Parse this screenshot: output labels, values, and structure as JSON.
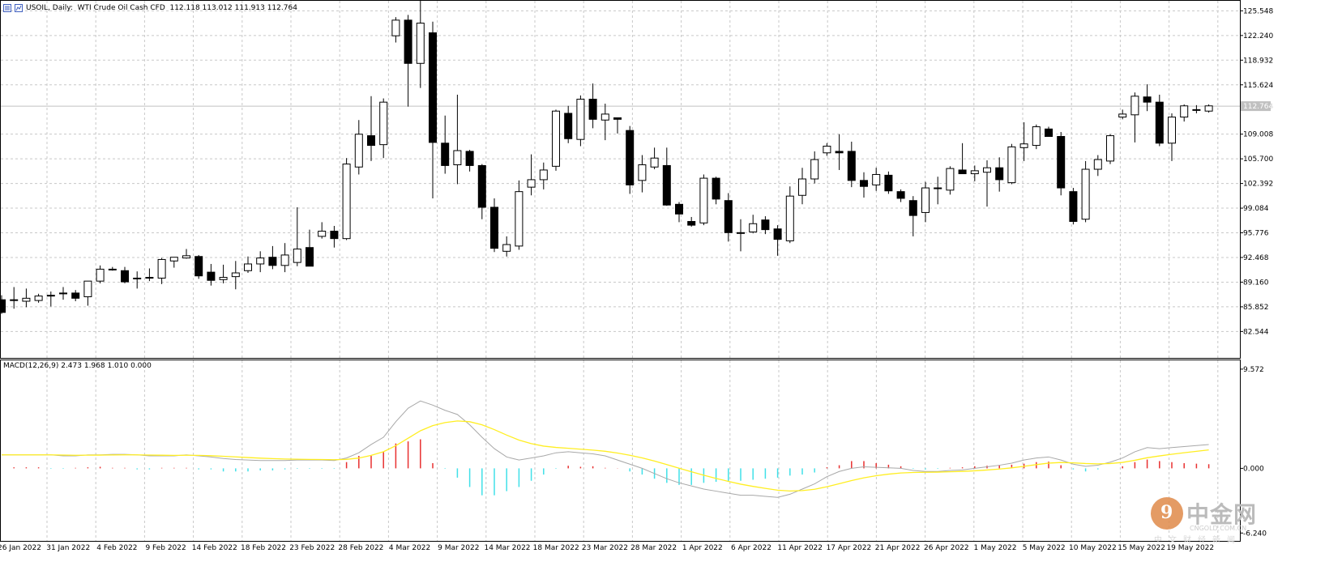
{
  "header": {
    "symbol_info": "USOIL, Daily:  WTI Crude Oil Cash CFD  112.118 113.012 111.913 112.764"
  },
  "macd_header": "MACD(12,26,9) 2.473 1.968 1.010 0.000",
  "watermark": {
    "brand": "中金网",
    "logo_char": "9",
    "domain": "CNGOLD.COM.CN",
    "tagline": "中文财经新闻"
  },
  "colors": {
    "grid": "#c8c8c8",
    "candle": "#000000",
    "hist_pos": "#e83030",
    "hist_neg": "#40e0e8",
    "macd_line": "#a8a8a8",
    "signal_line": "#ffee22",
    "current_price_bg": "#c0c0c0"
  },
  "chart_data": [
    {
      "type": "candlestick",
      "title": "USOIL, Daily: WTI Crude Oil Cash CFD",
      "ylim": [
        79.0,
        127.0
      ],
      "y_ticks": [
        "125.548",
        "122.240",
        "118.932",
        "115.624",
        "112.764",
        "109.008",
        "105.700",
        "102.392",
        "99.084",
        "95.776",
        "92.468",
        "89.160",
        "85.852",
        "82.544"
      ],
      "current_price": "112.764",
      "x_labels": [
        "26 Jan 2022",
        "31 Jan 2022",
        "4 Feb 2022",
        "9 Feb 2022",
        "14 Feb 2022",
        "18 Feb 2022",
        "23 Feb 2022",
        "28 Feb 2022",
        "4 Mar 2022",
        "9 Mar 2022",
        "14 Mar 2022",
        "18 Mar 2022",
        "23 Mar 2022",
        "28 Mar 2022",
        "1 Apr 2022",
        "6 Apr 2022",
        "11 Apr 2022",
        "17 Apr 2022",
        "21 Apr 2022",
        "26 Apr 2022",
        "1 May 2022",
        "5 May 2022",
        "10 May 2022",
        "15 May 2022",
        "19 May 2022"
      ],
      "ohlc": [
        [
          86.8,
          87.4,
          84.9,
          85.1
        ],
        [
          86.7,
          88.5,
          85.6,
          86.8
        ],
        [
          86.6,
          88.3,
          85.8,
          87.0
        ],
        [
          86.7,
          87.6,
          86.4,
          87.3
        ],
        [
          87.4,
          87.9,
          85.9,
          87.4
        ],
        [
          87.6,
          88.5,
          86.8,
          87.7
        ],
        [
          87.7,
          88.1,
          86.6,
          87.0
        ],
        [
          87.2,
          89.3,
          86.0,
          89.3
        ],
        [
          89.3,
          91.4,
          89.0,
          90.9
        ],
        [
          90.9,
          91.2,
          90.7,
          90.9
        ],
        [
          90.7,
          91.2,
          89.0,
          89.2
        ],
        [
          89.7,
          90.6,
          88.3,
          89.7
        ],
        [
          89.7,
          91.0,
          89.3,
          89.8
        ],
        [
          89.7,
          92.4,
          88.9,
          92.2
        ],
        [
          92.0,
          92.5,
          91.1,
          92.5
        ],
        [
          92.4,
          93.6,
          92.3,
          92.7
        ],
        [
          92.6,
          92.8,
          89.6,
          90.0
        ],
        [
          90.5,
          91.6,
          88.7,
          89.4
        ],
        [
          89.5,
          91.5,
          89.0,
          89.8
        ],
        [
          89.9,
          92.0,
          88.2,
          90.4
        ],
        [
          90.7,
          92.6,
          90.4,
          91.6
        ],
        [
          91.6,
          93.3,
          90.5,
          92.4
        ],
        [
          92.5,
          94.0,
          90.9,
          91.4
        ],
        [
          91.4,
          94.4,
          90.5,
          92.8
        ],
        [
          91.8,
          99.2,
          91.3,
          93.6
        ],
        [
          93.8,
          96.2,
          91.6,
          91.3
        ],
        [
          95.3,
          97.2,
          95.0,
          96.0
        ],
        [
          96.0,
          96.7,
          93.8,
          95.0
        ],
        [
          95.0,
          105.8,
          94.8,
          105.0
        ],
        [
          104.6,
          110.9,
          103.6,
          109.0
        ],
        [
          108.8,
          114.1,
          105.4,
          107.5
        ],
        [
          107.6,
          113.8,
          105.8,
          113.3
        ],
        [
          122.2,
          124.7,
          121.3,
          124.3
        ],
        [
          124.3,
          125.0,
          112.7,
          118.5
        ],
        [
          118.5,
          126.9,
          115.2,
          123.9
        ],
        [
          122.6,
          124.1,
          100.4,
          107.9
        ],
        [
          107.8,
          111.5,
          103.7,
          104.8
        ],
        [
          104.9,
          114.3,
          102.3,
          106.8
        ],
        [
          106.7,
          106.9,
          104.0,
          104.8
        ],
        [
          104.8,
          105.0,
          97.6,
          99.2
        ],
        [
          99.2,
          100.4,
          93.2,
          93.7
        ],
        [
          93.3,
          95.3,
          92.6,
          94.2
        ],
        [
          94.0,
          102.8,
          93.5,
          101.3
        ],
        [
          101.9,
          106.3,
          100.8,
          102.9
        ],
        [
          102.9,
          105.2,
          101.6,
          104.2
        ],
        [
          104.7,
          112.3,
          104.1,
          112.1
        ],
        [
          111.8,
          112.8,
          107.8,
          108.4
        ],
        [
          108.3,
          114.2,
          107.4,
          113.7
        ],
        [
          113.7,
          115.8,
          109.8,
          111.0
        ],
        [
          110.9,
          113.1,
          108.2,
          111.7
        ],
        [
          111.2,
          111.2,
          109.1,
          111.0
        ],
        [
          109.5,
          110.1,
          101.0,
          102.2
        ],
        [
          102.8,
          106.2,
          101.2,
          104.9
        ],
        [
          104.6,
          107.2,
          104.3,
          105.8
        ],
        [
          104.8,
          107.2,
          99.4,
          99.5
        ],
        [
          99.6,
          99.9,
          97.2,
          98.3
        ],
        [
          97.3,
          97.9,
          96.6,
          96.8
        ],
        [
          97.1,
          103.6,
          96.8,
          103.1
        ],
        [
          103.1,
          103.3,
          99.6,
          100.3
        ],
        [
          100.1,
          101.1,
          94.6,
          95.8
        ],
        [
          95.8,
          97.6,
          93.3,
          95.8
        ],
        [
          95.9,
          98.2,
          95.7,
          97.0
        ],
        [
          97.5,
          98.0,
          95.6,
          96.2
        ],
        [
          96.3,
          96.8,
          92.7,
          94.9
        ],
        [
          94.7,
          102.0,
          94.4,
          100.7
        ],
        [
          100.8,
          104.5,
          99.6,
          103.0
        ],
        [
          103.0,
          106.7,
          102.4,
          105.6
        ],
        [
          106.5,
          107.8,
          106.1,
          107.4
        ],
        [
          106.7,
          109.0,
          104.2,
          106.5
        ],
        [
          106.7,
          108.0,
          101.9,
          102.8
        ],
        [
          102.8,
          103.9,
          100.5,
          102.0
        ],
        [
          102.2,
          104.5,
          101.4,
          103.6
        ],
        [
          103.5,
          104.0,
          101.0,
          101.4
        ],
        [
          101.3,
          101.6,
          99.9,
          100.4
        ],
        [
          100.1,
          100.7,
          95.3,
          98.1
        ],
        [
          98.5,
          102.6,
          97.2,
          101.8
        ],
        [
          101.8,
          103.3,
          99.6,
          101.7
        ],
        [
          101.5,
          104.7,
          100.9,
          104.4
        ],
        [
          104.2,
          107.8,
          103.8,
          103.7
        ],
        [
          103.7,
          104.8,
          102.7,
          104.1
        ],
        [
          103.9,
          105.5,
          99.3,
          104.5
        ],
        [
          104.5,
          105.9,
          101.3,
          102.9
        ],
        [
          102.5,
          107.7,
          102.3,
          107.3
        ],
        [
          107.2,
          110.6,
          105.4,
          107.7
        ],
        [
          107.5,
          110.3,
          107.0,
          110.0
        ],
        [
          109.7,
          110.0,
          108.7,
          108.7
        ],
        [
          108.7,
          109.3,
          100.8,
          101.8
        ],
        [
          101.3,
          101.8,
          96.9,
          97.3
        ],
        [
          97.6,
          105.4,
          97.2,
          104.3
        ],
        [
          104.3,
          106.2,
          103.4,
          105.6
        ],
        [
          105.4,
          109.0,
          105.0,
          108.8
        ],
        [
          111.3,
          112.3,
          111.0,
          111.7
        ],
        [
          111.6,
          114.6,
          107.9,
          114.1
        ],
        [
          114.0,
          115.7,
          112.1,
          113.3
        ],
        [
          113.3,
          114.3,
          107.4,
          107.8
        ],
        [
          107.8,
          111.8,
          105.4,
          111.3
        ],
        [
          111.3,
          113.0,
          110.7,
          112.8
        ],
        [
          112.3,
          112.9,
          111.8,
          112.2
        ],
        [
          112.1,
          113.0,
          111.9,
          112.8
        ]
      ]
    },
    {
      "type": "bar+line",
      "title": "MACD(12,26,9)",
      "ylim": [
        -7.0,
        10.5
      ],
      "y_ticks": [
        "9.572",
        "0.000",
        "-6.240"
      ],
      "macd_label": "MACD(12,26,9)",
      "values_label": "2.473 1.968 1.010 0.000",
      "histogram": [
        0.0,
        0.1,
        0.1,
        0.1,
        -0.05,
        -0.05,
        0.05,
        0.1,
        0.15,
        0.05,
        0.05,
        -0.1,
        -0.1,
        0.05,
        0.05,
        0.05,
        -0.1,
        -0.1,
        -0.3,
        -0.3,
        -0.3,
        -0.2,
        -0.2,
        -0.1,
        -0.05,
        -0.05,
        -0.05,
        -0.05,
        0.6,
        1.2,
        1.2,
        1.6,
        2.4,
        2.6,
        2.8,
        0.5,
        -0.05,
        -0.9,
        -1.8,
        -2.6,
        -2.6,
        -2.2,
        -1.8,
        -1.2,
        -0.6,
        -0.05,
        0.25,
        0.15,
        0.2,
        0.05,
        0.02,
        -0.3,
        -0.6,
        -1.0,
        -1.4,
        -1.6,
        -1.6,
        -1.4,
        -1.3,
        -1.3,
        -1.2,
        -1.1,
        -1.0,
        -0.9,
        -0.7,
        -0.6,
        -0.4,
        0.1,
        0.3,
        0.7,
        0.7,
        0.5,
        0.35,
        0.2,
        -0.05,
        -0.1,
        -0.05,
        0.05,
        0.1,
        0.2,
        0.25,
        0.3,
        0.35,
        0.45,
        0.6,
        0.65,
        0.3,
        -0.1,
        -0.3,
        -0.1,
        0.0,
        0.2,
        0.6,
        0.85,
        0.7,
        0.6,
        0.5,
        0.45,
        0.4
      ],
      "macd": [
        1.3,
        1.3,
        1.3,
        1.3,
        1.3,
        1.2,
        1.2,
        1.3,
        1.3,
        1.35,
        1.35,
        1.3,
        1.2,
        1.2,
        1.2,
        1.3,
        1.2,
        1.1,
        0.95,
        0.85,
        0.8,
        0.75,
        0.75,
        0.75,
        0.8,
        0.8,
        0.8,
        0.75,
        1.0,
        1.5,
        2.3,
        3.0,
        4.5,
        5.8,
        6.5,
        6.1,
        5.6,
        5.2,
        4.2,
        3.0,
        1.9,
        1.1,
        0.8,
        1.0,
        1.2,
        1.5,
        1.6,
        1.5,
        1.4,
        1.2,
        0.8,
        0.4,
        0.0,
        -0.5,
        -1.0,
        -1.4,
        -1.7,
        -2.0,
        -2.2,
        -2.4,
        -2.6,
        -2.6,
        -2.7,
        -2.8,
        -2.5,
        -2.0,
        -1.5,
        -0.8,
        -0.3,
        0.0,
        0.15,
        0.1,
        0.05,
        0.0,
        -0.2,
        -0.3,
        -0.3,
        -0.2,
        -0.15,
        0.0,
        0.15,
        0.3,
        0.5,
        0.8,
        1.0,
        1.1,
        0.8,
        0.4,
        0.2,
        0.3,
        0.6,
        1.0,
        1.6,
        2.0,
        1.9,
        2.0,
        2.1,
        2.2,
        2.3
      ]
    }
  ]
}
